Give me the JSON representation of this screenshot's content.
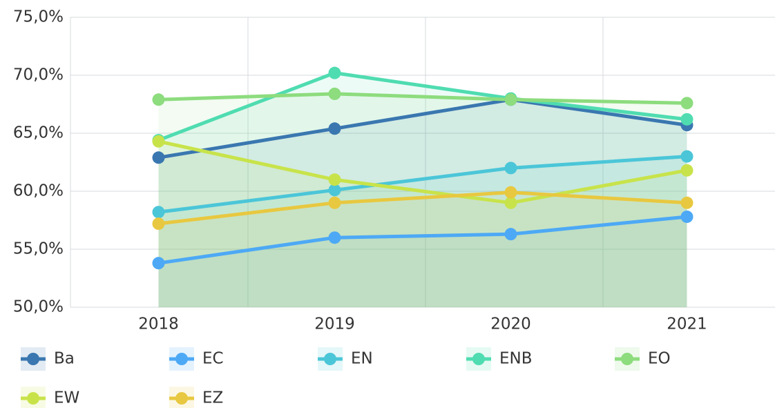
{
  "chart_data": {
    "type": "line",
    "categories": [
      "2018",
      "2019",
      "2020",
      "2021"
    ],
    "series": [
      {
        "name": "Ba",
        "color": "#3a77b0",
        "values": [
          62.9,
          65.4,
          67.9,
          65.7
        ]
      },
      {
        "name": "EC",
        "color": "#4da9f5",
        "values": [
          53.8,
          56.0,
          56.3,
          57.8
        ]
      },
      {
        "name": "EN",
        "color": "#4bc6d8",
        "values": [
          58.2,
          60.1,
          62.0,
          63.0
        ]
      },
      {
        "name": "ENB",
        "color": "#4fdcb0",
        "values": [
          64.4,
          70.2,
          68.0,
          66.2
        ]
      },
      {
        "name": "EO",
        "color": "#8ddc7e",
        "values": [
          67.9,
          68.4,
          67.9,
          67.6
        ]
      },
      {
        "name": "EW",
        "color": "#c8e34a",
        "values": [
          64.3,
          61.0,
          59.0,
          61.8
        ]
      },
      {
        "name": "EZ",
        "color": "#e8c840",
        "values": [
          57.2,
          59.0,
          59.9,
          59.0
        ]
      }
    ],
    "ylim": [
      50,
      75
    ],
    "yticks": [
      {
        "value": 50,
        "label": "50,0%"
      },
      {
        "value": 55,
        "label": "55,0%"
      },
      {
        "value": 60,
        "label": "60,0%"
      },
      {
        "value": 65,
        "label": "65,0%"
      },
      {
        "value": 70,
        "label": "70,0%"
      },
      {
        "value": 75,
        "label": "75,0%"
      }
    ],
    "grid": true,
    "area": true,
    "legend": "bottom"
  }
}
